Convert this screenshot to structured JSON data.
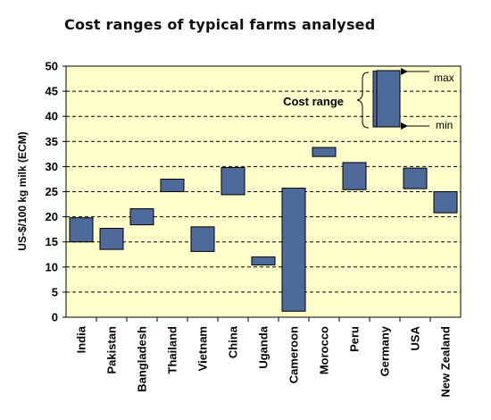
{
  "chart_data": {
    "type": "floating-bar",
    "title": "Cost ranges of typical farms analysed",
    "ylabel": "US-$/100 kg milk (ECM)",
    "xlabel": "",
    "ylim": [
      0,
      50
    ],
    "yticks": [
      0,
      5,
      10,
      15,
      20,
      25,
      30,
      35,
      40,
      45,
      50
    ],
    "grid": true,
    "categories": [
      "India",
      "Pakistan",
      "Bangladesh",
      "Thailand",
      "Vietnam",
      "China",
      "Uganda",
      "Cameroon",
      "Morocco",
      "Peru",
      "Germany",
      "USA",
      "New Zealand"
    ],
    "ranges": [
      {
        "min": 15.0,
        "max": 19.8
      },
      {
        "min": 13.5,
        "max": 17.7
      },
      {
        "min": 18.4,
        "max": 21.6
      },
      {
        "min": 25.0,
        "max": 27.5
      },
      {
        "min": 13.1,
        "max": 18.0
      },
      {
        "min": 24.4,
        "max": 29.8
      },
      {
        "min": 10.4,
        "max": 12.0
      },
      {
        "min": 1.2,
        "max": 25.7
      },
      {
        "min": 32.0,
        "max": 33.8
      },
      {
        "min": 25.4,
        "max": 30.8
      },
      {
        "min": 37.9,
        "max": 49.0
      },
      {
        "min": 25.6,
        "max": 29.7
      },
      {
        "min": 20.8,
        "max": 25.0
      }
    ],
    "legend": {
      "title": "Cost range",
      "max_label": "max",
      "min_label": "min",
      "placement": "top-right"
    },
    "colors": {
      "bar_fill": "#4d6a9a",
      "bar_stroke": "#000000",
      "plot_background": "#ffffcc",
      "grid": "#000000"
    }
  }
}
